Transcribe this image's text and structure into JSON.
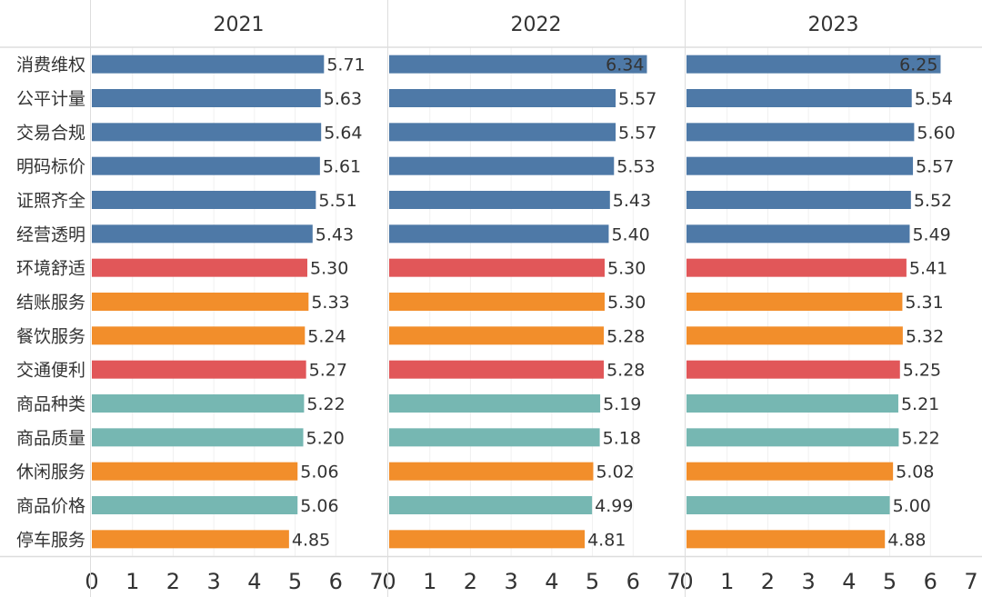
{
  "chart_data": {
    "type": "bar",
    "orientation": "horizontal",
    "layout": "small-multiples",
    "categories": [
      "消费维权",
      "公平计量",
      "交易合规",
      "明码标价",
      "证照齐全",
      "经营透明",
      "环境舒适",
      "结账服务",
      "餐饮服务",
      "交通便利",
      "商品种类",
      "商品质量",
      "休闲服务",
      "商品价格",
      "停车服务"
    ],
    "category_groups": [
      "blue",
      "blue",
      "blue",
      "blue",
      "blue",
      "blue",
      "red",
      "orange",
      "orange",
      "red",
      "teal",
      "teal",
      "orange",
      "teal",
      "orange"
    ],
    "group_colors": {
      "blue": "#4e79a7",
      "red": "#e15759",
      "orange": "#f28e2b",
      "teal": "#76b7b2"
    },
    "series": [
      {
        "name": "2021",
        "values": [
          5.71,
          5.63,
          5.64,
          5.61,
          5.51,
          5.43,
          5.3,
          5.33,
          5.24,
          5.27,
          5.22,
          5.2,
          5.06,
          5.06,
          4.85
        ],
        "labels": [
          "5.71",
          "5.63",
          "5.64",
          "5.61",
          "5.51",
          "5.43",
          "5.30",
          "5.33",
          "5.24",
          "5.27",
          "5.22",
          "5.20",
          "5.06",
          "5.06",
          "4.85"
        ]
      },
      {
        "name": "2022",
        "values": [
          6.34,
          5.57,
          5.57,
          5.53,
          5.43,
          5.4,
          5.3,
          5.3,
          5.28,
          5.28,
          5.19,
          5.18,
          5.02,
          4.99,
          4.81
        ],
        "labels": [
          "6.34",
          "5.57",
          "5.57",
          "5.53",
          "5.43",
          "5.40",
          "5.30",
          "5.30",
          "5.28",
          "5.28",
          "5.19",
          "5.18",
          "5.02",
          "4.99",
          "4.81"
        ]
      },
      {
        "name": "2023",
        "values": [
          6.25,
          5.54,
          5.6,
          5.57,
          5.52,
          5.49,
          5.41,
          5.31,
          5.32,
          5.25,
          5.21,
          5.22,
          5.08,
          5.0,
          4.88
        ],
        "labels": [
          "6.25",
          "5.54",
          "5.60",
          "5.57",
          "5.52",
          "5.49",
          "5.41",
          "5.31",
          "5.32",
          "5.25",
          "5.21",
          "5.22",
          "5.08",
          "5.00",
          "4.88"
        ]
      }
    ],
    "xlim": [
      0,
      7
    ],
    "xticks": [
      "0",
      "1",
      "2",
      "3",
      "4",
      "5",
      "6",
      "7"
    ],
    "title": "",
    "xlabel": "",
    "ylabel": "",
    "grid": true,
    "legend": "none"
  }
}
